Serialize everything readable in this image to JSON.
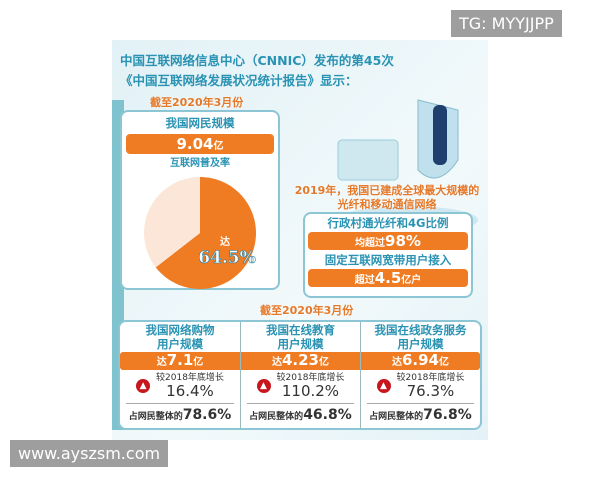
{
  "headline": {
    "line1": "中国互联网络信息中心（CNNIC）发布的第45次",
    "line2": "《中国互联网络发展状况统计报告》显示："
  },
  "date_label": "截至2020年3月份",
  "netizens": {
    "title": "我国网民规模",
    "value": "9.04",
    "unit": "亿",
    "penetration_label": "互联网普及率"
  },
  "chart_data": {
    "type": "pie",
    "title": "互联网普及率",
    "slices": [
      {
        "label": "达64.5%",
        "value": 64.5,
        "color": "#ef7b22"
      },
      {
        "label": "",
        "value": 35.5,
        "color": "#fce6d8"
      }
    ],
    "prefix": "达",
    "value_label": "64.5%"
  },
  "network": {
    "headline1": "2019年，我国已建成全球最大规模的",
    "headline2": "光纤和移动通信网络",
    "row1_title": "行政村通光纤和4G比例",
    "row1_prefix": "均超过",
    "row1_value": "98%",
    "row2_title": "固定互联网宽带用户接入",
    "row2_prefix": "超过",
    "row2_value": "4.5",
    "row2_unit": "亿户"
  },
  "bottom_date": "截至2020年3月份",
  "columns": [
    {
      "title1": "我国网络购物",
      "title2": "用户规模",
      "prefix": "达",
      "value": "7.1",
      "unit": "亿",
      "growth_label": "较2018年底增长",
      "growth": "16.4%",
      "share_label": "占网民整体的",
      "share": "78.6%"
    },
    {
      "title1": "我国在线教育",
      "title2": "用户规模",
      "prefix": "达",
      "value": "4.23",
      "unit": "亿",
      "growth_label": "较2018年底增长",
      "growth": "110.2%",
      "share_label": "占网民整体的",
      "share": "46.8%"
    },
    {
      "title1": "我国在线政务服务",
      "title2": "用户规模",
      "prefix": "达",
      "value": "6.94",
      "unit": "亿",
      "growth_label": "较2018年底增长",
      "growth": "76.3%",
      "share_label": "占网民整体的",
      "share": "76.8%"
    }
  ],
  "watermarks": {
    "top": "TG: MYYJJPP",
    "bottom": "www.ayszsm.com"
  },
  "colors": {
    "orange": "#ef7b22",
    "teal": "#2a93b3",
    "growth_arrow": "#c8161d"
  }
}
